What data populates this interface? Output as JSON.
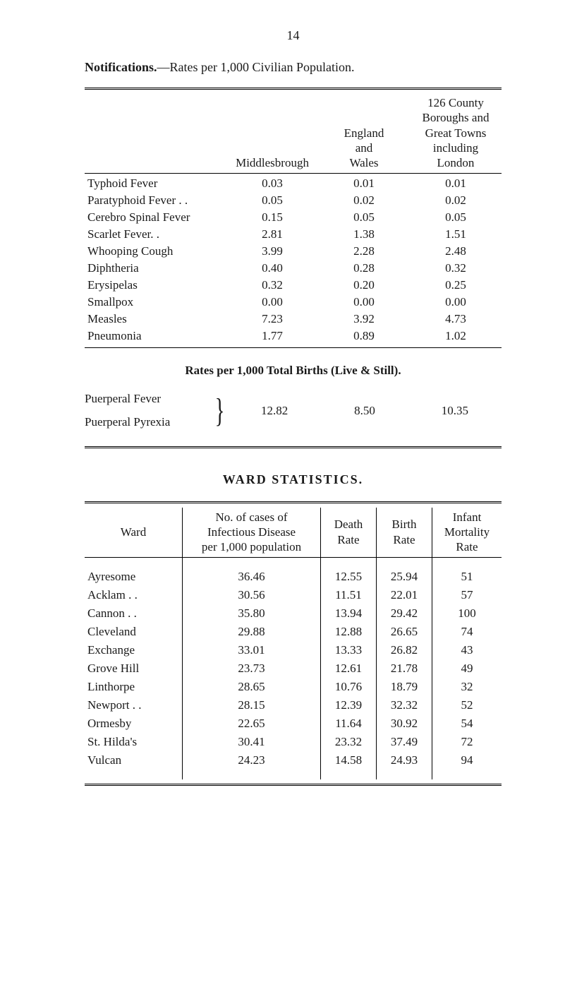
{
  "page_number": "14",
  "intro": {
    "bold": "Notifications.",
    "rest": "—Rates per 1,000 Civilian Population."
  },
  "table1": {
    "headers": {
      "c2": "Middlesbrough",
      "c3": "England\nand\nWales",
      "c4": "126 County\nBoroughs and\nGreat Towns\nincluding\nLondon"
    },
    "rows": [
      {
        "label": "Typhoid Fever",
        "c2": "0.03",
        "c3": "0.01",
        "c4": "0.01"
      },
      {
        "label": "Paratyphoid Fever . .",
        "c2": "0.05",
        "c3": "0.02",
        "c4": "0.02"
      },
      {
        "label": "Cerebro Spinal Fever",
        "c2": "0.15",
        "c3": "0.05",
        "c4": "0.05"
      },
      {
        "label": "Scarlet Fever. .",
        "c2": "2.81",
        "c3": "1.38",
        "c4": "1.51"
      },
      {
        "label": "Whooping Cough",
        "c2": "3.99",
        "c3": "2.28",
        "c4": "2.48"
      },
      {
        "label": "Diphtheria",
        "c2": "0.40",
        "c3": "0.28",
        "c4": "0.32"
      },
      {
        "label": "Erysipelas",
        "c2": "0.32",
        "c3": "0.20",
        "c4": "0.25"
      },
      {
        "label": "Smallpox",
        "c2": "0.00",
        "c3": "0.00",
        "c4": "0.00"
      },
      {
        "label": "Measles",
        "c2": "7.23",
        "c3": "3.92",
        "c4": "4.73"
      },
      {
        "label": "Pneumonia",
        "c2": "1.77",
        "c3": "0.89",
        "c4": "1.02"
      }
    ]
  },
  "rates_heading": "Rates per 1,000 Total Births (Live & Still).",
  "puerperal": {
    "top_label": "Puerperal Fever",
    "bottom_label": "Puerperal Pyrexia",
    "v1": "12.82",
    "v2": "8.50",
    "v3": "10.35"
  },
  "ward_heading": "WARD  STATISTICS.",
  "table2": {
    "headers": {
      "c1": "Ward",
      "c2": "No. of cases of\nInfectious Disease\nper 1,000 population",
      "c3": "Death\nRate",
      "c4": "Birth\nRate",
      "c5": "Infant\nMortality\nRate"
    },
    "rows": [
      {
        "lbl": "Ayresome",
        "c2": "36.46",
        "c3": "12.55",
        "c4": "25.94",
        "c5": "51"
      },
      {
        "lbl": "Acklam . .",
        "c2": "30.56",
        "c3": "11.51",
        "c4": "22.01",
        "c5": "57"
      },
      {
        "lbl": "Cannon . .",
        "c2": "35.80",
        "c3": "13.94",
        "c4": "29.42",
        "c5": "100"
      },
      {
        "lbl": "Cleveland",
        "c2": "29.88",
        "c3": "12.88",
        "c4": "26.65",
        "c5": "74"
      },
      {
        "lbl": "Exchange",
        "c2": "33.01",
        "c3": "13.33",
        "c4": "26.82",
        "c5": "43"
      },
      {
        "lbl": "Grove Hill",
        "c2": "23.73",
        "c3": "12.61",
        "c4": "21.78",
        "c5": "49"
      },
      {
        "lbl": "Linthorpe",
        "c2": "28.65",
        "c3": "10.76",
        "c4": "18.79",
        "c5": "32"
      },
      {
        "lbl": "Newport . .",
        "c2": "28.15",
        "c3": "12.39",
        "c4": "32.32",
        "c5": "52"
      },
      {
        "lbl": "Ormesby",
        "c2": "22.65",
        "c3": "11.64",
        "c4": "30.92",
        "c5": "54"
      },
      {
        "lbl": "St. Hilda's",
        "c2": "30.41",
        "c3": "23.32",
        "c4": "37.49",
        "c5": "72"
      },
      {
        "lbl": "Vulcan",
        "c2": "24.23",
        "c3": "14.58",
        "c4": "24.93",
        "c5": "94"
      }
    ]
  }
}
